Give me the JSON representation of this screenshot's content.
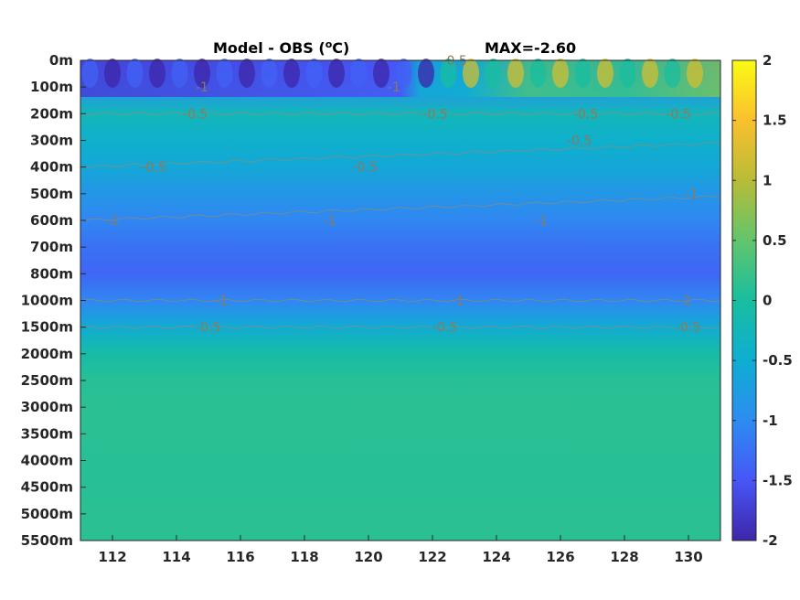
{
  "chart_data": {
    "type": "heatmap",
    "title": "Model - OBS (°C)",
    "title_main": "Model - OBS (",
    "title_sup": "o",
    "title_unit": "C)",
    "max_label": "MAX=-2.60",
    "x_ticks": [
      112,
      114,
      116,
      118,
      120,
      122,
      124,
      126,
      128,
      130
    ],
    "xlim": [
      111,
      131
    ],
    "y_ticks": [
      "0m",
      "100m",
      "200m",
      "300m",
      "400m",
      "500m",
      "600m",
      "700m",
      "800m",
      "1000m",
      "1500m",
      "2000m",
      "2500m",
      "3000m",
      "3500m",
      "4000m",
      "4500m",
      "5000m",
      "5500m"
    ],
    "colorbar": {
      "ticks": [
        "2",
        "1.5",
        "1",
        "0.5",
        "0",
        "-0.5",
        "-1",
        "-1.5",
        "-2"
      ],
      "clim": [
        -2,
        2
      ],
      "colormap": "parula"
    },
    "depth_profile": [
      {
        "level": "0m",
        "value": -1.6
      },
      {
        "level": "100m",
        "value": -0.9
      },
      {
        "level": "200m",
        "value": -0.25
      },
      {
        "level": "300m",
        "value": -0.45
      },
      {
        "level": "400m",
        "value": -0.6
      },
      {
        "level": "500m",
        "value": -0.85
      },
      {
        "level": "600m",
        "value": -1.05
      },
      {
        "level": "700m",
        "value": -1.25
      },
      {
        "level": "800m",
        "value": -1.35
      },
      {
        "level": "1000m",
        "value": -1.05
      },
      {
        "level": "1500m",
        "value": -0.55
      },
      {
        "level": "2000m",
        "value": -0.05
      },
      {
        "level": "2500m",
        "value": 0.1
      },
      {
        "level": "3000m",
        "value": 0.12
      },
      {
        "level": "3500m",
        "value": 0.12
      },
      {
        "level": "4000m",
        "value": 0.1
      },
      {
        "level": "4500m",
        "value": 0.1
      },
      {
        "level": "5000m",
        "value": 0.12
      },
      {
        "level": "5500m",
        "value": 0.12
      }
    ],
    "contour_labels": [
      {
        "text": "-1",
        "x": 114.6,
        "y": "100m"
      },
      {
        "text": "-1",
        "x": 120.6,
        "y": "100m"
      },
      {
        "text": "-0.5",
        "x": 122.3,
        "y": "0m"
      },
      {
        "text": "-0.5",
        "x": 114.2,
        "y": "200m"
      },
      {
        "text": "-0.5",
        "x": 121.7,
        "y": "200m"
      },
      {
        "text": "-0.5",
        "x": 126.4,
        "y": "200m"
      },
      {
        "text": "-0.5",
        "x": 129.3,
        "y": "200m"
      },
      {
        "text": "-0.5",
        "x": 112.9,
        "y": "400m"
      },
      {
        "text": "-0.5",
        "x": 119.5,
        "y": "400m"
      },
      {
        "text": "-0.5",
        "x": 126.2,
        "y": "300m"
      },
      {
        "text": "-1",
        "x": 111.8,
        "y": "600m"
      },
      {
        "text": "-1",
        "x": 118.6,
        "y": "600m"
      },
      {
        "text": "-1",
        "x": 125.2,
        "y": "600m"
      },
      {
        "text": "-1",
        "x": 129.9,
        "y": "500m"
      },
      {
        "text": "-1",
        "x": 115.2,
        "y": "1000m"
      },
      {
        "text": "-1",
        "x": 122.6,
        "y": "1000m"
      },
      {
        "text": "-1",
        "x": 129.7,
        "y": "1000m"
      },
      {
        "text": "-0.5",
        "x": 114.6,
        "y": "1500m"
      },
      {
        "text": "-0.5",
        "x": 122.0,
        "y": "1500m"
      },
      {
        "text": "-0.5",
        "x": 129.6,
        "y": "1500m"
      }
    ]
  }
}
